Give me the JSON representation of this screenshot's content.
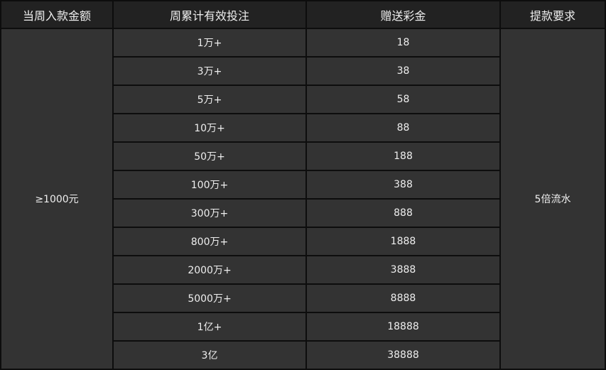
{
  "headers": [
    "当周入款金额",
    "周累计有效投注",
    "赠送彩金",
    "提款要求"
  ],
  "deposit": "≥1000元",
  "requirement": "5倍流水",
  "rows": [
    {
      "bet": "1万+",
      "bonus": "18"
    },
    {
      "bet": "3万+",
      "bonus": "38"
    },
    {
      "bet": "5万+",
      "bonus": "58"
    },
    {
      "bet": "10万+",
      "bonus": "88"
    },
    {
      "bet": "50万+",
      "bonus": "188"
    },
    {
      "bet": "100万+",
      "bonus": "388"
    },
    {
      "bet": "300万+",
      "bonus": "888"
    },
    {
      "bet": "800万+",
      "bonus": "1888"
    },
    {
      "bet": "2000万+",
      "bonus": "3888"
    },
    {
      "bet": "5000万+",
      "bonus": "8888"
    },
    {
      "bet": "1亿+",
      "bonus": "18888"
    },
    {
      "bet": "3亿",
      "bonus": "38888"
    }
  ]
}
